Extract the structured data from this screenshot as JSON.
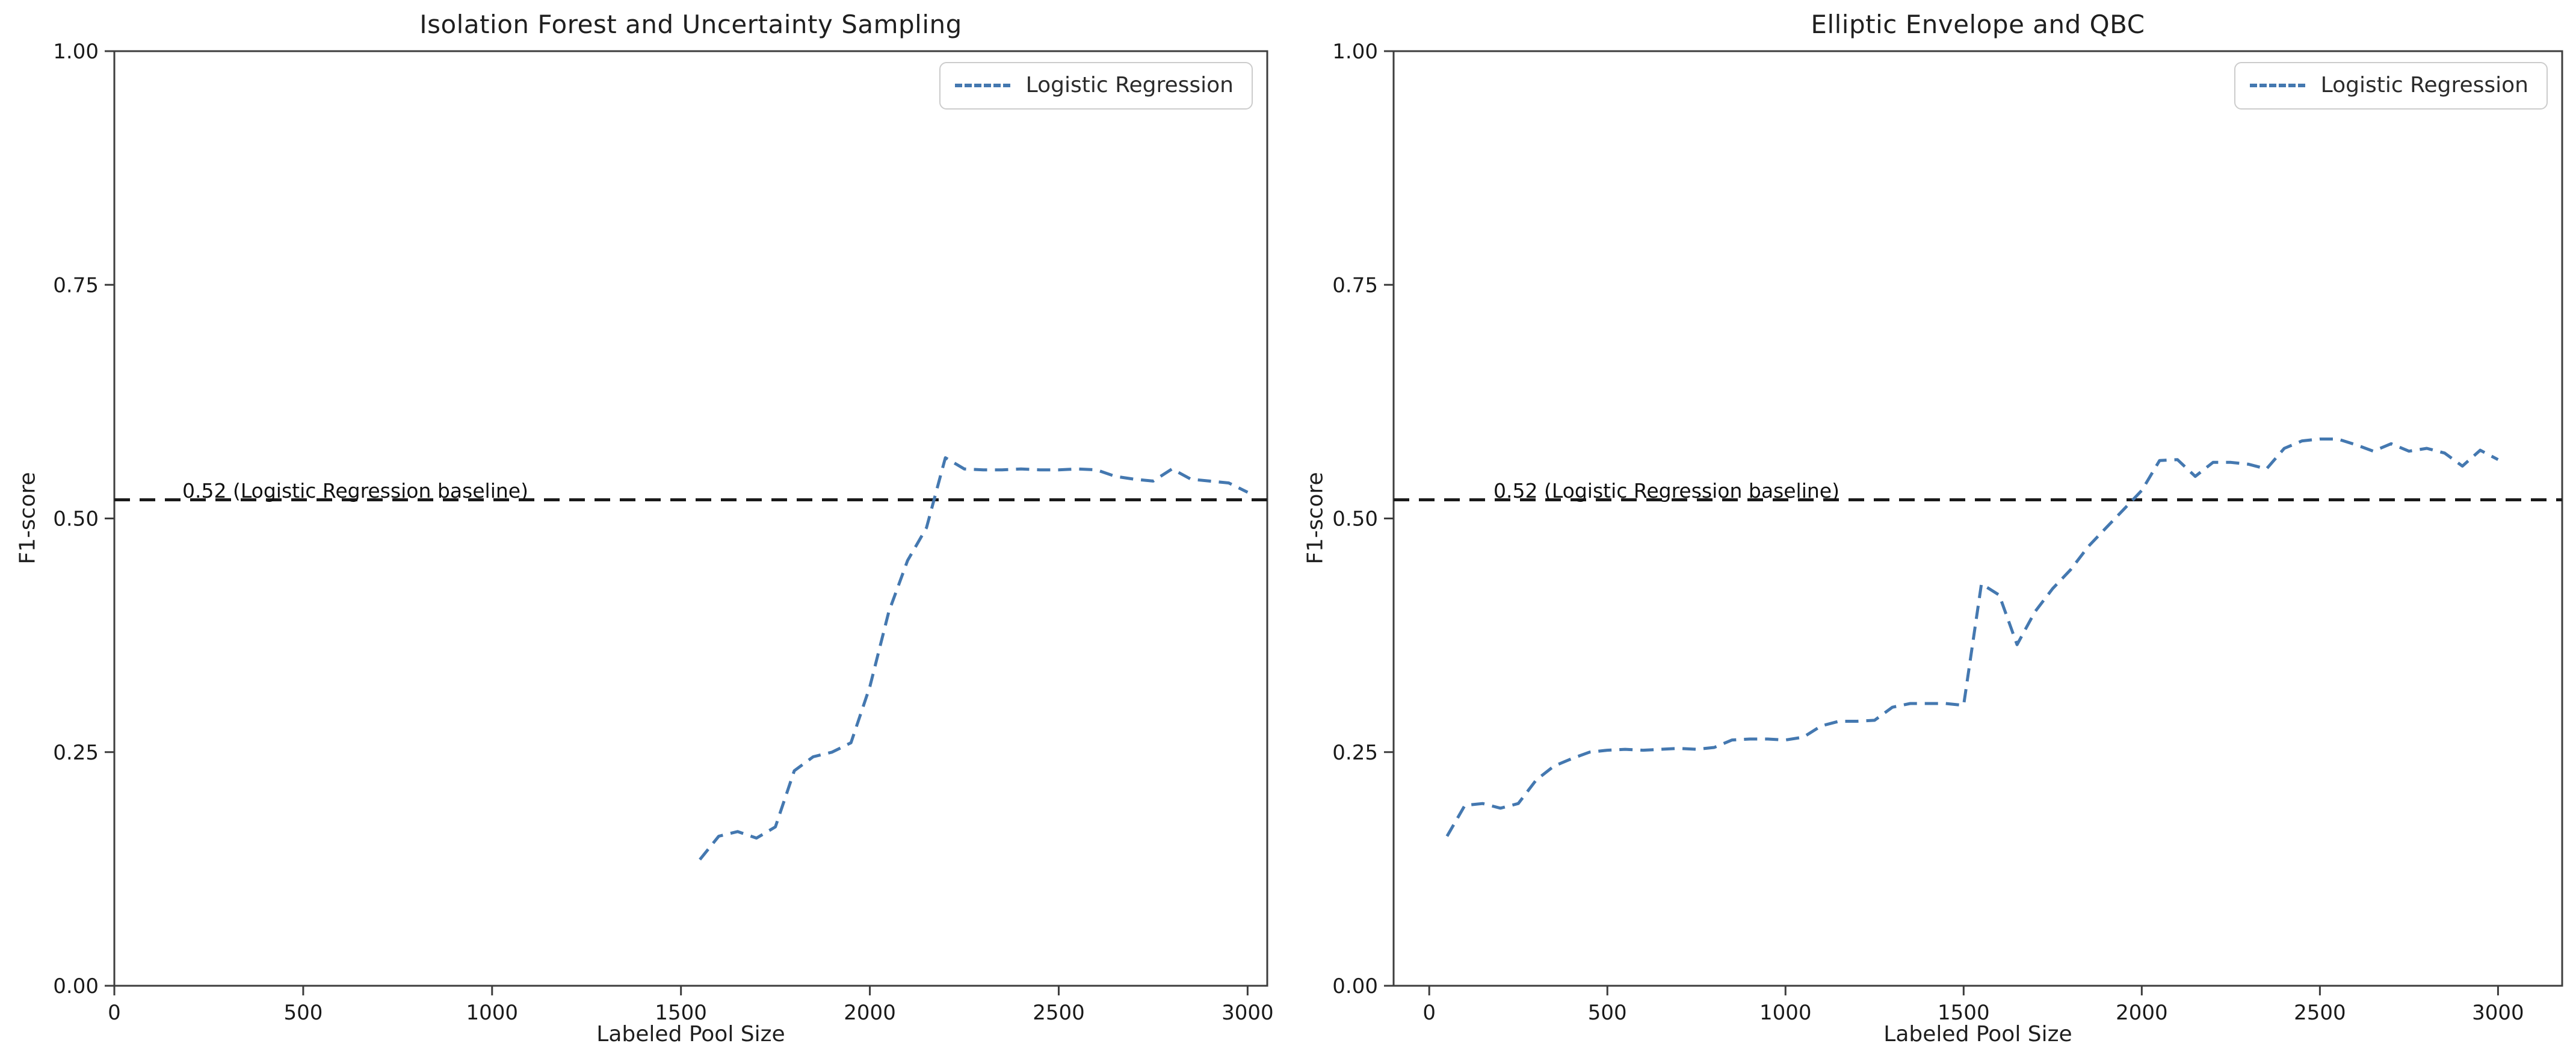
{
  "figure": {
    "background": "#ffffff",
    "spine_color": "#3d3d3d"
  },
  "chart_data": [
    {
      "type": "line",
      "title": "Isolation Forest and Uncertainty Sampling",
      "xlabel": "Labeled Pool Size",
      "ylabel": "F1-score",
      "xlim": [
        0,
        3052
      ],
      "ylim": [
        0,
        1
      ],
      "grid": false,
      "xticks": {
        "values": [
          0,
          500,
          1000,
          1500,
          2000,
          2500,
          3000
        ],
        "labels": [
          "0",
          "500",
          "1000",
          "1500",
          "2000",
          "2500",
          "3000"
        ]
      },
      "yticks": {
        "values": [
          0,
          0.25,
          0.5,
          0.75,
          1.0
        ],
        "labels": [
          "0.00",
          "0.25",
          "0.50",
          "0.75",
          "1.00"
        ]
      },
      "legend": {
        "position": "upper right",
        "entries": [
          {
            "label": "Logistic Regression",
            "style": "dashed",
            "color": "#4478b0"
          }
        ]
      },
      "baseline": {
        "value": 0.52,
        "label": "0.52 (Logistic Regression baseline)",
        "color": "#1a1a1a",
        "style": "dashed"
      },
      "series": [
        {
          "name": "Logistic Regression",
          "color": "#4478b0",
          "style": "dashed",
          "x": [
            1550,
            1600,
            1650,
            1700,
            1750,
            1800,
            1850,
            1900,
            1950,
            2000,
            2050,
            2100,
            2150,
            2200,
            2250,
            2300,
            2350,
            2400,
            2450,
            2500,
            2550,
            2600,
            2650,
            2700,
            2750,
            2800,
            2850,
            2900,
            2950,
            3000
          ],
          "y": [
            0.135,
            0.16,
            0.165,
            0.158,
            0.17,
            0.23,
            0.245,
            0.25,
            0.26,
            0.32,
            0.4,
            0.455,
            0.49,
            0.565,
            0.553,
            0.552,
            0.552,
            0.553,
            0.552,
            0.552,
            0.553,
            0.552,
            0.545,
            0.542,
            0.54,
            0.553,
            0.542,
            0.54,
            0.538,
            0.528
          ]
        }
      ]
    },
    {
      "type": "line",
      "title": "Elliptic Envelope and QBC",
      "xlabel": "Labeled Pool Size",
      "ylabel": "F1-score",
      "xlim": [
        -100,
        3180
      ],
      "ylim": [
        0,
        1
      ],
      "grid": false,
      "xticks": {
        "values": [
          0,
          500,
          1000,
          1500,
          2000,
          2500,
          3000
        ],
        "labels": [
          "0",
          "500",
          "1000",
          "1500",
          "2000",
          "2500",
          "3000"
        ]
      },
      "yticks": {
        "values": [
          0,
          0.25,
          0.5,
          0.75,
          1.0
        ],
        "labels": [
          "0.00",
          "0.25",
          "0.50",
          "0.75",
          "1.00"
        ]
      },
      "legend": {
        "position": "upper right",
        "entries": [
          {
            "label": "Logistic Regression",
            "style": "dashed",
            "color": "#4478b0"
          }
        ]
      },
      "baseline": {
        "value": 0.52,
        "label": "0.52 (Logistic Regression baseline)",
        "color": "#1a1a1a",
        "style": "dashed"
      },
      "series": [
        {
          "name": "Logistic Regression",
          "color": "#4478b0",
          "style": "dashed",
          "x": [
            50,
            100,
            150,
            200,
            250,
            300,
            350,
            400,
            450,
            500,
            550,
            600,
            650,
            700,
            750,
            800,
            850,
            900,
            950,
            1000,
            1050,
            1100,
            1150,
            1200,
            1250,
            1300,
            1350,
            1400,
            1450,
            1500,
            1550,
            1600,
            1650,
            1700,
            1750,
            1800,
            1850,
            1900,
            1950,
            2000,
            2050,
            2100,
            2150,
            2200,
            2250,
            2300,
            2350,
            2400,
            2450,
            2500,
            2550,
            2600,
            2650,
            2700,
            2750,
            2800,
            2850,
            2900,
            2950,
            3000
          ],
          "y": [
            0.16,
            0.193,
            0.195,
            0.19,
            0.195,
            0.22,
            0.235,
            0.243,
            0.25,
            0.252,
            0.253,
            0.252,
            0.253,
            0.254,
            0.253,
            0.255,
            0.263,
            0.264,
            0.264,
            0.263,
            0.266,
            0.278,
            0.283,
            0.283,
            0.284,
            0.298,
            0.302,
            0.302,
            0.302,
            0.3,
            0.43,
            0.418,
            0.365,
            0.4,
            0.425,
            0.445,
            0.47,
            0.49,
            0.51,
            0.53,
            0.562,
            0.563,
            0.545,
            0.56,
            0.56,
            0.558,
            0.553,
            0.575,
            0.583,
            0.585,
            0.585,
            0.579,
            0.572,
            0.58,
            0.572,
            0.575,
            0.57,
            0.556,
            0.573,
            0.563
          ]
        }
      ]
    }
  ]
}
